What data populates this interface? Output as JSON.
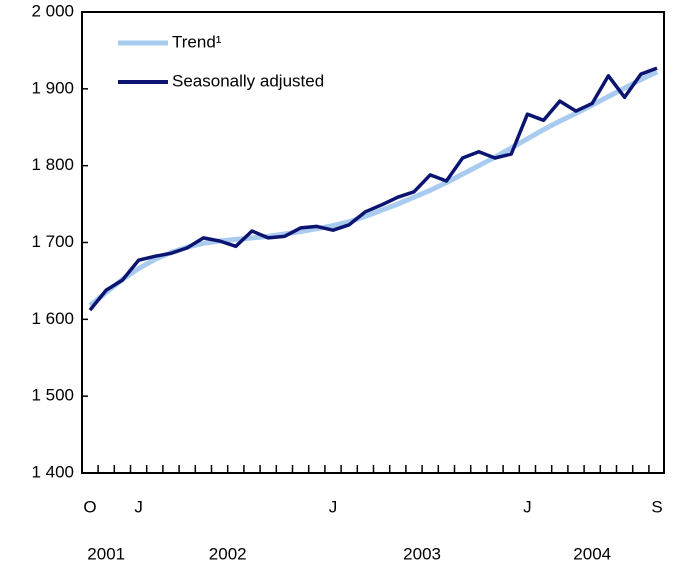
{
  "chart_data": {
    "type": "line",
    "categories": [
      "O",
      null,
      null,
      "J",
      null,
      null,
      null,
      null,
      null,
      null,
      null,
      null,
      null,
      null,
      null,
      "J",
      null,
      null,
      null,
      null,
      null,
      null,
      null,
      null,
      null,
      null,
      null,
      "J",
      null,
      null,
      null,
      null,
      null,
      null,
      null,
      "S"
    ],
    "year_labels": [
      "2001",
      "2002",
      "2003",
      "2004"
    ],
    "series": [
      {
        "name": "Trend¹",
        "color": "#a9cbf0",
        "values": [
          1618,
          1635,
          1652,
          1666,
          1678,
          1687,
          1694,
          1699,
          1702,
          1704,
          1706,
          1708,
          1711,
          1714,
          1718,
          1722,
          1727,
          1734,
          1742,
          1750,
          1759,
          1768,
          1778,
          1789,
          1800,
          1811,
          1823,
          1835,
          1847,
          1858,
          1868,
          1879,
          1890,
          1901,
          1912,
          1922
        ]
      },
      {
        "name": "Seasonally adjusted",
        "color": "#0b1470",
        "values": [
          1612,
          1638,
          1651,
          1677,
          1682,
          1686,
          1693,
          1706,
          1702,
          1695,
          1715,
          1706,
          1708,
          1719,
          1721,
          1716,
          1723,
          1740,
          1749,
          1759,
          1766,
          1788,
          1780,
          1810,
          1818,
          1810,
          1815,
          1867,
          1859,
          1884,
          1871,
          1881,
          1917,
          1889,
          1919,
          1927
        ]
      }
    ],
    "ylim": [
      1400,
      2000
    ],
    "yticks": [
      {
        "value": 1400,
        "label": "1 400"
      },
      {
        "value": 1500,
        "label": "1 500"
      },
      {
        "value": 1600,
        "label": "1 600"
      },
      {
        "value": 1700,
        "label": "1 700"
      },
      {
        "value": 1800,
        "label": "1 800"
      },
      {
        "value": 1900,
        "label": "1 900"
      },
      {
        "value": 2000,
        "label": "2 000"
      }
    ],
    "legend": "top-left"
  }
}
